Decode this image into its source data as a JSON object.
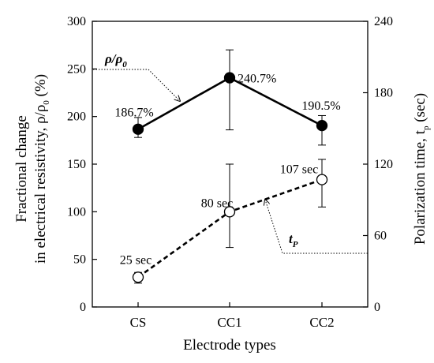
{
  "chart_data": {
    "type": "line",
    "xlabel": "Electrode types",
    "categories": [
      "CS",
      "CC1",
      "CC2"
    ],
    "y_left": {
      "label_line1": "Fractional change",
      "label_line2": "in electrical resistivity, ρ/ρ",
      "label_line2_sub": "0",
      "label_line2_end": " (%)",
      "lim": [
        0,
        300
      ],
      "ticks": [
        0,
        50,
        100,
        150,
        200,
        250,
        300
      ]
    },
    "y_right": {
      "label_main": "Polarization time, t",
      "label_sub": "p",
      "label_end": " (sec)",
      "lim": [
        0,
        240
      ],
      "ticks": [
        0,
        60,
        120,
        180,
        240
      ]
    },
    "series": [
      {
        "name": "ρ/ρ",
        "name_sub": "0",
        "axis": "left",
        "marker": "filled-circle",
        "line_style": "solid",
        "values": [
          186.7,
          240.7,
          190.5
        ],
        "error": [
          [
            178,
            199
          ],
          [
            186,
            270
          ],
          [
            170,
            201
          ]
        ],
        "labels": [
          "186.7%",
          "240.7%",
          "190.5%"
        ]
      },
      {
        "name": "t",
        "name_sub": "P",
        "axis": "right",
        "marker": "open-circle",
        "line_style": "dashed",
        "values": [
          25,
          80,
          107
        ],
        "error": [
          [
            20,
            29
          ],
          [
            50,
            120
          ],
          [
            84,
            124
          ]
        ],
        "labels": [
          "25 sec",
          "80 sec",
          "107 sec"
        ]
      }
    ]
  }
}
